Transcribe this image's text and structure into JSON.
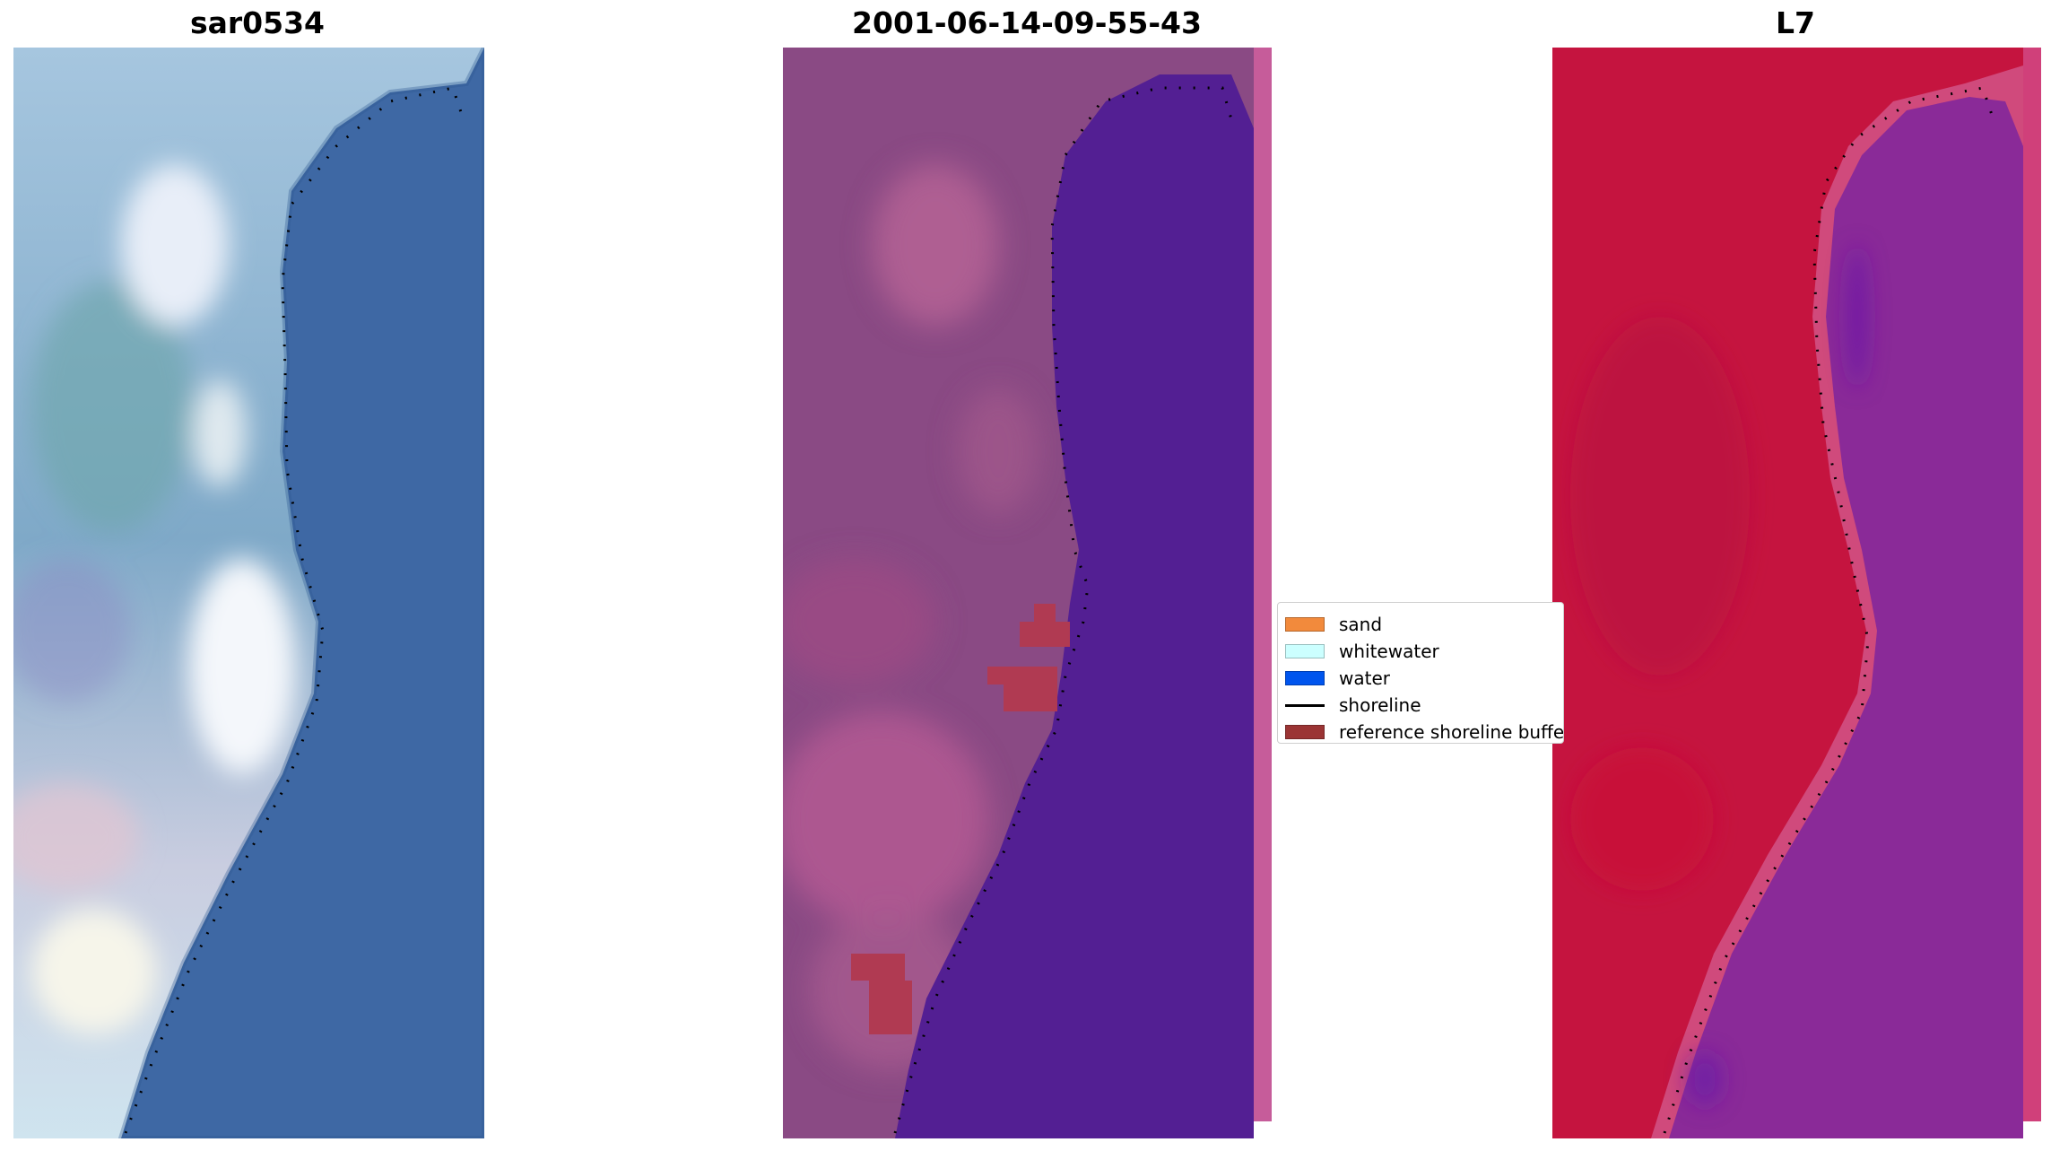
{
  "panels": [
    {
      "title": "sar0534"
    },
    {
      "title": "2001-06-14-09-55-43"
    },
    {
      "title": "L7"
    }
  ],
  "legend": {
    "items": [
      {
        "label": "sand",
        "color": "#f28a3c"
      },
      {
        "label": "whitewater",
        "color": "#ccffff"
      },
      {
        "label": "water",
        "color": "#0055ee"
      },
      {
        "label": "shoreline",
        "color": "#000000"
      },
      {
        "label": "reference shoreline buffer",
        "color": "#9b3434"
      }
    ]
  },
  "colors": {
    "water_rgb": "#3e68a4",
    "land_rgb": "#8fb0d2",
    "water_class": "#531f93",
    "land_class": "#8a4a84",
    "buffer_overlay": "#b03a52",
    "ndwi_land": "#c5143f",
    "ndwi_water": "#8a2a98"
  }
}
